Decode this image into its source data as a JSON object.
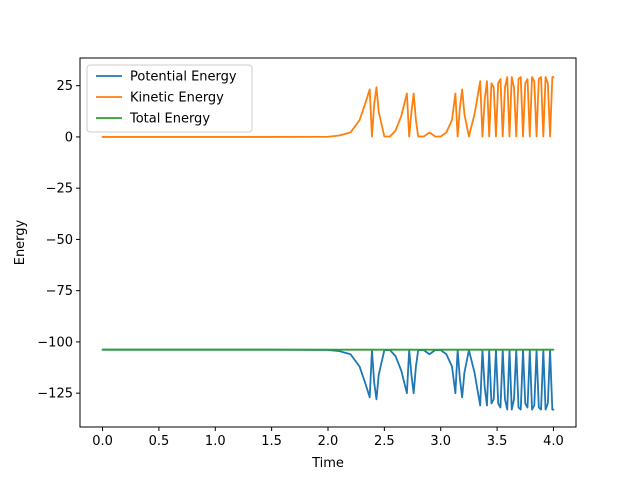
{
  "chart_data": {
    "type": "line",
    "title": "",
    "xlabel": "Time",
    "ylabel": "Energy",
    "xlim": [
      -0.2,
      4.2
    ],
    "ylim": [
      -141.5,
      38.5
    ],
    "xticks": [
      0.0,
      0.5,
      1.0,
      1.5,
      2.0,
      2.5,
      3.0,
      3.5,
      4.0
    ],
    "xtick_labels": [
      "0.0",
      "0.5",
      "1.0",
      "1.5",
      "2.0",
      "2.5",
      "3.0",
      "3.5",
      "4.0"
    ],
    "yticks": [
      25,
      0,
      -25,
      -50,
      -75,
      -100,
      -125
    ],
    "ytick_labels": [
      "25",
      "0",
      "−25",
      "−50",
      "−75",
      "−100",
      "−125"
    ],
    "grid": false,
    "legend_position": "top-left",
    "series": [
      {
        "name": "Potential Energy",
        "color": "#1f77b4",
        "x": [
          0.0,
          0.5,
          1.0,
          1.5,
          2.0,
          2.1,
          2.2,
          2.28,
          2.33,
          2.37,
          2.39,
          2.41,
          2.43,
          2.45,
          2.5,
          2.55,
          2.6,
          2.65,
          2.7,
          2.72,
          2.74,
          2.76,
          2.78,
          2.8,
          2.85,
          2.9,
          2.95,
          3.0,
          3.05,
          3.1,
          3.13,
          3.15,
          3.17,
          3.19,
          3.21,
          3.25,
          3.3,
          3.35,
          3.37,
          3.39,
          3.41,
          3.43,
          3.45,
          3.47,
          3.49,
          3.51,
          3.53,
          3.55,
          3.57,
          3.59,
          3.61,
          3.63,
          3.65,
          3.67,
          3.69,
          3.71,
          3.73,
          3.75,
          3.77,
          3.79,
          3.81,
          3.83,
          3.85,
          3.87,
          3.89,
          3.91,
          3.93,
          3.95,
          3.97,
          3.99,
          4.0
        ],
        "y": [
          -103.8,
          -103.8,
          -103.8,
          -103.8,
          -103.9,
          -104.5,
          -106.0,
          -112.0,
          -120.0,
          -127.0,
          -104.0,
          -120.0,
          -128.0,
          -116.0,
          -104.0,
          -104.0,
          -107.0,
          -114.0,
          -125.0,
          -104.0,
          -116.0,
          -125.0,
          -112.0,
          -104.0,
          -104.0,
          -106.0,
          -104.0,
          -104.0,
          -106.0,
          -112.0,
          -125.0,
          -104.0,
          -118.0,
          -127.0,
          -115.0,
          -104.0,
          -115.0,
          -131.0,
          -104.0,
          -122.0,
          -131.0,
          -104.0,
          -130.0,
          -128.0,
          -104.0,
          -130.0,
          -132.0,
          -104.0,
          -128.0,
          -133.0,
          -104.0,
          -133.0,
          -128.0,
          -104.0,
          -132.0,
          -133.0,
          -104.0,
          -130.0,
          -132.0,
          -104.0,
          -133.0,
          -131.0,
          -104.0,
          -132.0,
          -133.0,
          -104.0,
          -133.0,
          -130.0,
          -104.0,
          -133.0,
          -133.0
        ]
      },
      {
        "name": "Kinetic Energy",
        "color": "#ff7f0e",
        "x": [
          0.0,
          0.5,
          1.0,
          1.5,
          2.0,
          2.1,
          2.2,
          2.28,
          2.33,
          2.37,
          2.39,
          2.41,
          2.43,
          2.45,
          2.5,
          2.55,
          2.6,
          2.65,
          2.7,
          2.72,
          2.74,
          2.76,
          2.78,
          2.8,
          2.85,
          2.9,
          2.95,
          3.0,
          3.05,
          3.1,
          3.13,
          3.15,
          3.17,
          3.19,
          3.21,
          3.25,
          3.3,
          3.35,
          3.37,
          3.39,
          3.41,
          3.43,
          3.45,
          3.47,
          3.49,
          3.51,
          3.53,
          3.55,
          3.57,
          3.59,
          3.61,
          3.63,
          3.65,
          3.67,
          3.69,
          3.71,
          3.73,
          3.75,
          3.77,
          3.79,
          3.81,
          3.83,
          3.85,
          3.87,
          3.89,
          3.91,
          3.93,
          3.95,
          3.97,
          3.99,
          4.0
        ],
        "y": [
          0.0,
          0.0,
          0.0,
          0.0,
          0.1,
          0.7,
          2.2,
          8.2,
          16.2,
          23.2,
          0.2,
          16.2,
          24.2,
          12.2,
          0.2,
          0.2,
          3.2,
          10.2,
          21.2,
          0.2,
          12.2,
          21.2,
          8.2,
          0.2,
          0.2,
          2.2,
          0.2,
          0.2,
          2.2,
          8.2,
          21.2,
          0.2,
          14.2,
          23.2,
          11.2,
          0.2,
          11.2,
          27.2,
          0.2,
          18.2,
          27.2,
          0.2,
          26.2,
          24.2,
          0.2,
          26.2,
          28.2,
          0.2,
          24.2,
          29.2,
          0.2,
          29.2,
          24.2,
          0.2,
          28.2,
          29.2,
          0.2,
          26.2,
          28.2,
          0.2,
          29.2,
          27.2,
          0.2,
          28.2,
          29.2,
          0.2,
          29.2,
          26.2,
          0.2,
          29.2,
          29.2
        ]
      },
      {
        "name": "Total Energy",
        "color": "#2ca02c",
        "x": [
          0.0,
          0.5,
          1.0,
          1.5,
          2.0,
          2.5,
          3.0,
          3.5,
          4.0
        ],
        "y": [
          -103.8,
          -103.8,
          -103.8,
          -103.8,
          -103.8,
          -103.8,
          -103.8,
          -103.8,
          -103.8
        ]
      }
    ]
  }
}
